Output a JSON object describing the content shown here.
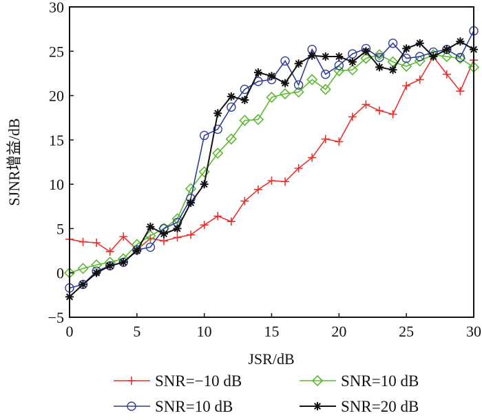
{
  "chart_data": {
    "type": "line",
    "title": "",
    "xlabel": "JSR/dB",
    "ylabel": "SJNR增益/dB",
    "xlim": [
      0,
      30
    ],
    "ylim": [
      -5,
      30
    ],
    "xticks": [
      "0",
      "5",
      "10",
      "15",
      "20",
      "25",
      "30"
    ],
    "yticks": [
      "−5",
      "0",
      "5",
      "10",
      "15",
      "20",
      "25",
      "30"
    ],
    "xtick_values": [
      0,
      5,
      10,
      15,
      20,
      25,
      30
    ],
    "ytick_values": [
      -5,
      0,
      5,
      10,
      15,
      20,
      25,
      30
    ],
    "grid": false,
    "legend_position": "bottom",
    "x": [
      0,
      1,
      2,
      3,
      4,
      5,
      6,
      7,
      8,
      9,
      10,
      11,
      12,
      13,
      14,
      15,
      16,
      17,
      18,
      19,
      20,
      21,
      22,
      23,
      24,
      25,
      26,
      27,
      28,
      29,
      30
    ],
    "series": [
      {
        "name": "SNR=−10 dB",
        "color": "#e8312f",
        "marker": "plus",
        "values": [
          3.8,
          3.5,
          3.4,
          2.4,
          4.1,
          2.6,
          3.9,
          3.6,
          4.0,
          4.3,
          5.4,
          6.4,
          5.8,
          8.1,
          9.4,
          10.4,
          10.3,
          11.8,
          13.0,
          15.1,
          14.8,
          17.6,
          19.0,
          18.3,
          17.9,
          21.1,
          21.8,
          24.4,
          22.4,
          20.5,
          24.0
        ]
      },
      {
        "name": "SNR=10 dB",
        "color": "#2e3c96",
        "marker": "circle",
        "values": [
          -1.7,
          -1.3,
          0.2,
          0.8,
          1.2,
          2.6,
          2.9,
          5.0,
          5.7,
          8.4,
          15.5,
          16.2,
          18.7,
          20.7,
          21.6,
          21.8,
          23.9,
          21.2,
          25.2,
          22.4,
          23.4,
          24.7,
          25.3,
          24.3,
          25.9,
          24.2,
          24.4,
          24.9,
          25.2,
          24.3,
          27.3
        ]
      },
      {
        "name": "SNR=10 dB",
        "color": "#5cb82e",
        "marker": "diamond",
        "values": [
          0.0,
          0.5,
          0.9,
          1.2,
          1.6,
          3.2,
          4.2,
          5.0,
          6.1,
          9.5,
          11.4,
          13.5,
          15.1,
          17.2,
          17.3,
          19.8,
          20.2,
          20.4,
          21.8,
          20.7,
          22.8,
          22.9,
          24.2,
          24.6,
          23.8,
          23.3,
          23.9,
          24.6,
          24.4,
          24.2,
          23.2
        ]
      },
      {
        "name": "SNR=20 dB",
        "color": "#111111",
        "marker": "star",
        "values": [
          -2.7,
          -1.3,
          0.0,
          0.8,
          1.2,
          2.5,
          5.2,
          4.4,
          5.0,
          7.9,
          10.0,
          18.0,
          19.9,
          19.5,
          22.6,
          22.2,
          21.4,
          23.6,
          24.5,
          24.4,
          24.4,
          23.8,
          25.0,
          23.2,
          22.9,
          25.3,
          25.9,
          24.4,
          25.2,
          26.1,
          25.2
        ]
      }
    ],
    "legend": [
      {
        "label": "SNR=−10 dB",
        "series_index": 0
      },
      {
        "label": "SNR=10 dB",
        "series_index": 2
      },
      {
        "label": "SNR=10 dB",
        "series_index": 1
      },
      {
        "label": "SNR=20 dB",
        "series_index": 3
      }
    ]
  }
}
